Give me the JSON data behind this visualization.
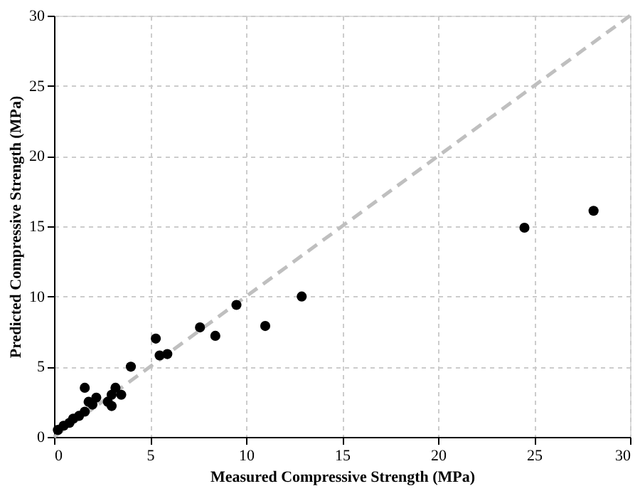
{
  "chart_data": {
    "type": "scatter",
    "xlabel": "Measured Compressive Strength (MPa)",
    "ylabel": "Predicted Compressive Strength (MPa)",
    "xlim": [
      0,
      30
    ],
    "ylim": [
      0,
      30
    ],
    "xticks": [
      0,
      5,
      10,
      15,
      20,
      25,
      30
    ],
    "yticks": [
      0,
      5,
      10,
      15,
      20,
      25,
      30
    ],
    "grid": true,
    "marker": "circle",
    "series": [
      {
        "color": "#000000",
        "x": [
          0.2,
          0.5,
          0.8,
          1.0,
          1.3,
          1.6,
          1.8,
          1.6,
          2.0,
          2.2,
          2.8,
          3.0,
          3.0,
          3.2,
          3.5,
          4.0,
          5.3,
          5.5,
          5.9,
          7.6,
          8.4,
          9.5,
          11.0,
          12.9,
          24.5,
          28.1
        ],
        "values": [
          0.5,
          0.8,
          1.0,
          1.3,
          1.5,
          1.8,
          2.5,
          3.5,
          2.3,
          2.8,
          2.5,
          3.0,
          2.2,
          3.5,
          3.0,
          5.0,
          7.0,
          5.8,
          5.9,
          7.8,
          7.2,
          9.4,
          7.9,
          10.0,
          14.9,
          16.1
        ]
      },
      {
        "type": "line",
        "color": "#bfbfbf",
        "line_style": "dashed",
        "marker": "none",
        "x": [
          0,
          30
        ],
        "values": [
          0,
          30
        ]
      }
    ]
  }
}
